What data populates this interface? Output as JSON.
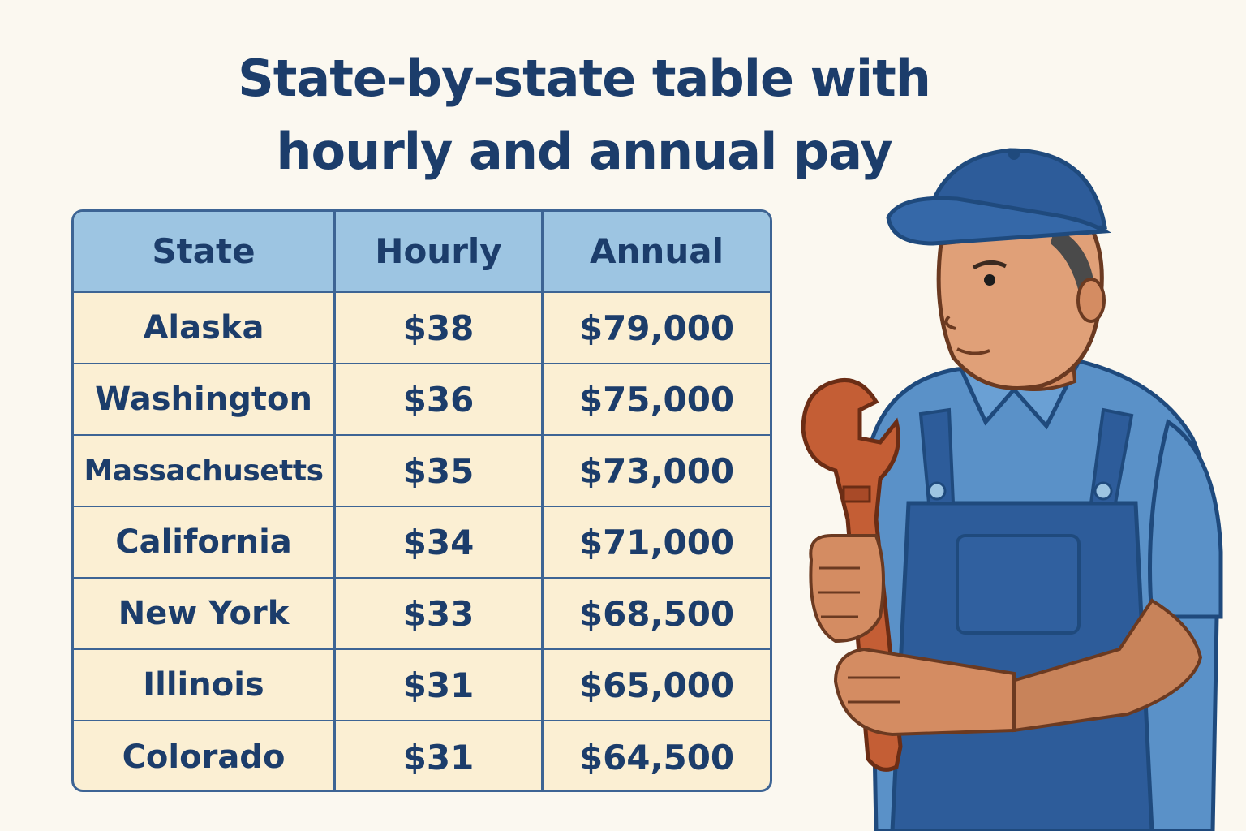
{
  "title": {
    "line1": "State-by-state table with",
    "line2": "hourly and annual pay"
  },
  "table": {
    "headers": [
      "State",
      "Hourly",
      "Annual"
    ],
    "rows": [
      {
        "state": "Alaska",
        "hourly": "$38",
        "annual": "$79,000"
      },
      {
        "state": "Washington",
        "hourly": "$36",
        "annual": "$75,000"
      },
      {
        "state": "Massachusetts",
        "hourly": "$35",
        "annual": "$73,000"
      },
      {
        "state": "California",
        "hourly": "$34",
        "annual": "$71,000"
      },
      {
        "state": "New York",
        "hourly": "$33",
        "annual": "$68,500"
      },
      {
        "state": "Illinois",
        "hourly": "$31",
        "annual": "$65,000"
      },
      {
        "state": "Colorado",
        "hourly": "$31",
        "annual": "$64,500"
      }
    ]
  },
  "colors": {
    "text": "#1c3d6b",
    "header_bg": "#9dc5e2",
    "row_bg": "#fbefd3",
    "border": "#3d6494",
    "background": "#fbf8f0"
  },
  "illustration": {
    "icon": "plumber-with-wrench-icon"
  }
}
